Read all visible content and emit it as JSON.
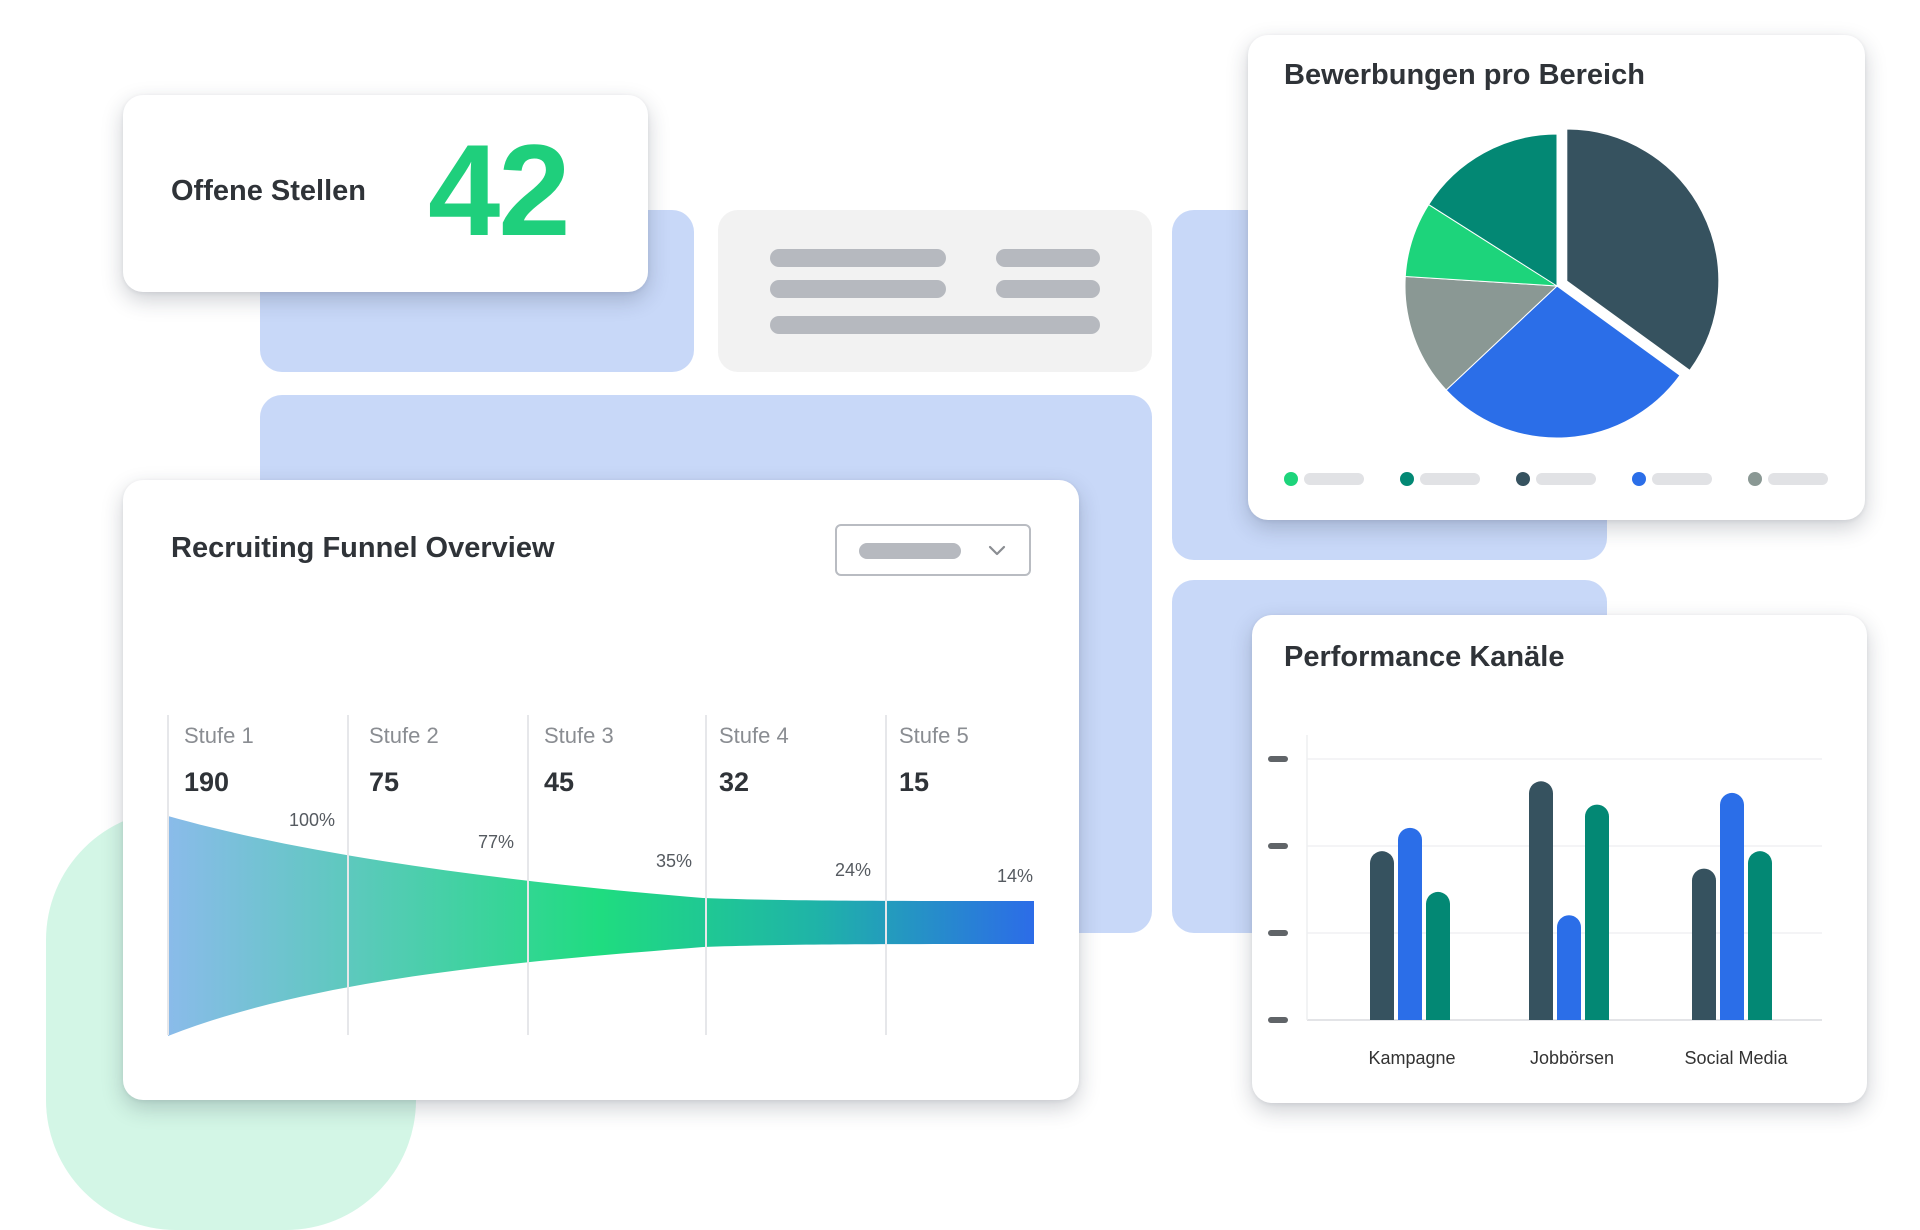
{
  "kpi": {
    "label": "Offene Stellen",
    "value": "42"
  },
  "funnel": {
    "title": "Recruiting Funnel Overview",
    "stages": [
      {
        "name": "Stufe 1",
        "count": "190",
        "percent": "100%"
      },
      {
        "name": "Stufe 2",
        "count": "75",
        "percent": "77%"
      },
      {
        "name": "Stufe 3",
        "count": "45",
        "percent": "35%"
      },
      {
        "name": "Stufe 4",
        "count": "32",
        "percent": "24%"
      },
      {
        "name": "Stufe 5",
        "count": "15",
        "percent": "14%"
      }
    ]
  },
  "pie": {
    "title": "Bewerbungen pro Bereich"
  },
  "bars": {
    "title": "Performance Kanäle",
    "categories": [
      "Kampagne",
      "Jobbörsen",
      "Social Media"
    ]
  },
  "colors": {
    "accent_green": "#1fcf7c",
    "navy": "#36525f",
    "teal": "#038874",
    "blue": "#2b6ee8",
    "gray": "#8a9894",
    "bg_blue": "#c8d8f8"
  },
  "chart_data": [
    {
      "type": "pie",
      "title": "Bewerbungen pro Bereich",
      "slices": [
        {
          "value": 35,
          "color": "#36525f",
          "exploded": true
        },
        {
          "value": 28,
          "color": "#2b6ee8"
        },
        {
          "value": 13,
          "color": "#8a9894"
        },
        {
          "value": 8,
          "color": "#1dd47b"
        },
        {
          "value": 16,
          "color": "#038874"
        }
      ],
      "legend": "bottom"
    },
    {
      "type": "bar",
      "title": "Performance Kanäle",
      "categories": [
        "Kampagne",
        "Jobbörsen",
        "Social Media"
      ],
      "series": [
        {
          "color": "#36525f",
          "values": [
            58,
            82,
            52
          ]
        },
        {
          "color": "#2b6ee8",
          "values": [
            66,
            36,
            78
          ]
        },
        {
          "color": "#038874",
          "values": [
            44,
            74,
            58
          ]
        }
      ],
      "ylim": [
        0,
        90
      ],
      "grid": true
    },
    {
      "type": "area",
      "title": "Recruiting Funnel Overview",
      "categories": [
        "Stufe 1",
        "Stufe 2",
        "Stufe 3",
        "Stufe 4",
        "Stufe 5"
      ],
      "values": [
        190,
        75,
        45,
        32,
        15
      ],
      "percent": [
        100,
        77,
        35,
        24,
        14
      ]
    }
  ]
}
